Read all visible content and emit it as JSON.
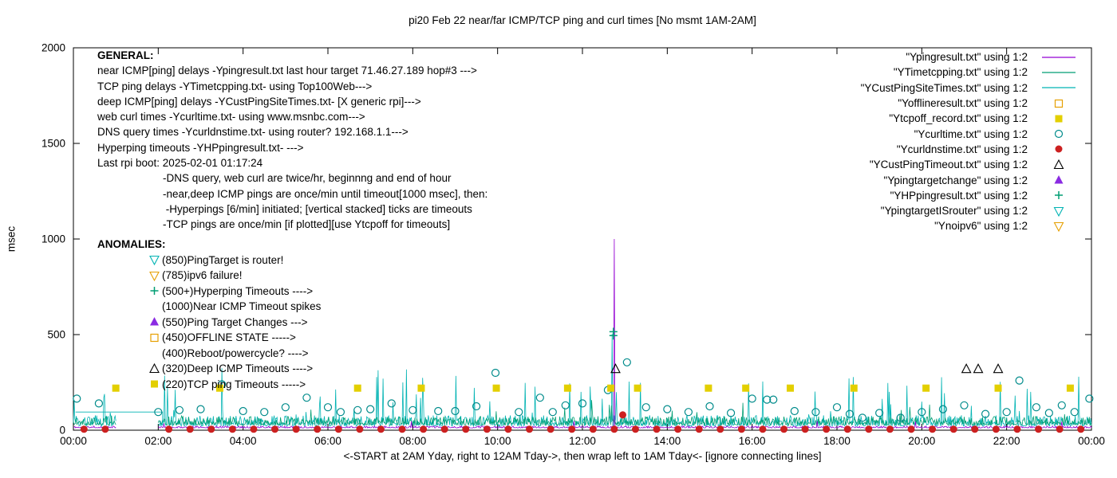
{
  "title": "pi20 Feb 22  near/far ICMP/TCP ping and curl times [No msmt 1AM-2AM]",
  "axes": {
    "ylabel": "msec",
    "xlabel": "<-START at 2AM Yday, right to 12AM Tday->, then wrap left to 1AM Tday<- [ignore connecting lines]",
    "y_ticks": [
      0,
      500,
      1000,
      1500,
      2000
    ],
    "x_tick_labels": [
      "00:00",
      "02:00",
      "04:00",
      "06:00",
      "08:00",
      "10:00",
      "12:00",
      "14:00",
      "16:00",
      "18:00",
      "20:00",
      "22:00",
      "00:00"
    ]
  },
  "general": {
    "heading": "GENERAL:",
    "lines": [
      "near ICMP[ping] delays -Ypingresult.txt last hour target 71.46.27.189 hop#3 --->",
      "TCP ping delays -YTimetcpping.txt- using Top100Web--->",
      "deep ICMP[ping] delays -YCustPingSiteTimes.txt- [X generic rpi]--->",
      "web curl times -Ycurltime.txt- using www.msnbc.com--->",
      "DNS query times -Ycurldnstime.txt- using router? 192.168.1.1--->",
      "Hyperping timeouts -YHPpingresult.txt- --->",
      "Last rpi boot: 2025-02-01 01:17:24"
    ],
    "indented_lines": [
      "-DNS query, web curl are twice/hr, beginnng and end of hour",
      "-near,deep ICMP pings are once/min until timeout[1000 msec], then:",
      " -Hyperpings [6/min] initiated; [vertical stacked] ticks are timeouts",
      "-TCP pings are once/min [if plotted][use Ytcpoff for timeouts]"
    ]
  },
  "anomalies": {
    "heading": "ANOMALIES:",
    "items": [
      {
        "marker": "open-triangle-down",
        "color": "#00b3b3",
        "label": "(850)PingTarget is router!"
      },
      {
        "marker": "open-triangle-down",
        "color": "#e69f00",
        "label": "(785)ipv6 failure!"
      },
      {
        "marker": "plus",
        "color": "#009e73",
        "label": "(500+)Hyperping Timeouts ---->"
      },
      {
        "marker": "none",
        "color": "",
        "label": "(1000)Near ICMP Timeout spikes"
      },
      {
        "marker": "filled-triangle-up",
        "color": "#8a2be2",
        "label": "(550)Ping Target Changes --->"
      },
      {
        "marker": "open-square",
        "color": "#e69f00",
        "label": "(450)OFFLINE STATE ----->"
      },
      {
        "marker": "none",
        "color": "",
        "label": "(400)Reboot/powercycle? ---->"
      },
      {
        "marker": "open-triangle-up",
        "color": "#000000",
        "label": "(320)Deep ICMP Timeouts ---->"
      },
      {
        "marker": "filled-square",
        "color": "#e3cf00",
        "label": "(220)TCP ping Timeouts ----->"
      }
    ]
  },
  "legend": [
    {
      "label": "\"Ypingresult.txt\" using 1:2",
      "marker": "line",
      "color": "#9400d3"
    },
    {
      "label": "\"YTimetcpping.txt\" using 1:2",
      "marker": "line",
      "color": "#009e73"
    },
    {
      "label": "\"YCustPingSiteTimes.txt\" using 1:2",
      "marker": "line",
      "color": "#00b3b3"
    },
    {
      "label": "\"Yofflineresult.txt\" using 1:2",
      "marker": "open-square",
      "color": "#e69f00"
    },
    {
      "label": "\"Ytcpoff_record.txt\" using 1:2",
      "marker": "filled-square",
      "color": "#e3cf00"
    },
    {
      "label": "\"Ycurltime.txt\" using 1:2",
      "marker": "open-circle",
      "color": "#008b8b"
    },
    {
      "label": "\"Ycurldnstime.txt\" using 1:2",
      "marker": "filled-circle",
      "color": "#cc2020"
    },
    {
      "label": "\"YCustPingTimeout.txt\" using 1:2",
      "marker": "open-triangle-up",
      "color": "#000000"
    },
    {
      "label": "\"Ypingtargetchange\" using 1:2",
      "marker": "filled-triangle-up",
      "color": "#8a2be2"
    },
    {
      "label": "\"YHPpingresult.txt\" using 1:2",
      "marker": "plus",
      "color": "#009e73"
    },
    {
      "label": "\"YpingtargetISrouter\" using 1:2",
      "marker": "open-triangle-down",
      "color": "#00b3b3"
    },
    {
      "label": "\"Ynoipv6\" using 1:2",
      "marker": "open-triangle-down",
      "color": "#e69f00"
    }
  ],
  "chart_data": {
    "type": "line+scatter",
    "x_unit": "hours",
    "x_range": [
      0,
      24
    ],
    "y_range": [
      0,
      2000
    ],
    "grid": false,
    "no_measurement_gap_hours": [
      1.0,
      2.0
    ],
    "line_series": [
      {
        "name": "YCustPingSiteTimes.txt",
        "color": "#00b3b3",
        "baseline_msec": 22,
        "jitter_msec": 28,
        "spike_probability": 0.05,
        "spike_max_msec": 260,
        "seed": 33,
        "explicit_spikes": [
          [
            12.7,
            505
          ]
        ]
      },
      {
        "name": "YTimetcpping.txt",
        "color": "#009e73",
        "baseline_msec": 28,
        "jitter_msec": 22,
        "spike_probability": 0.02,
        "spike_max_msec": 100,
        "seed": 22,
        "explicit_spikes": []
      },
      {
        "name": "Ypingresult.txt",
        "color": "#9400d3",
        "baseline_msec": 12,
        "jitter_msec": 5,
        "spike_probability": 0.002,
        "spike_max_msec": 40,
        "seed": 11,
        "explicit_spikes": [
          [
            12.75,
            1000
          ]
        ]
      }
    ],
    "scatter_series": [
      {
        "name": "Ycurltime.txt",
        "marker": "open-circle",
        "color": "#008b8b",
        "points": [
          [
            0.08,
            165
          ],
          [
            0.6,
            140
          ],
          [
            2.0,
            95
          ],
          [
            2.5,
            105
          ],
          [
            3.0,
            110
          ],
          [
            3.5,
            240
          ],
          [
            4.0,
            100
          ],
          [
            4.5,
            95
          ],
          [
            5.0,
            120
          ],
          [
            5.5,
            170
          ],
          [
            6.0,
            120
          ],
          [
            6.3,
            95
          ],
          [
            6.7,
            105
          ],
          [
            7.0,
            110
          ],
          [
            7.5,
            140
          ],
          [
            8.0,
            105
          ],
          [
            8.6,
            100
          ],
          [
            9.0,
            100
          ],
          [
            9.5,
            125
          ],
          [
            9.95,
            300
          ],
          [
            10.5,
            95
          ],
          [
            11.0,
            170
          ],
          [
            11.3,
            95
          ],
          [
            11.6,
            130
          ],
          [
            12.0,
            140
          ],
          [
            12.6,
            210
          ],
          [
            13.05,
            355
          ],
          [
            13.5,
            120
          ],
          [
            14.0,
            110
          ],
          [
            14.5,
            95
          ],
          [
            15.0,
            125
          ],
          [
            15.5,
            90
          ],
          [
            16.0,
            165
          ],
          [
            16.35,
            160
          ],
          [
            16.5,
            160
          ],
          [
            17.0,
            100
          ],
          [
            17.5,
            95
          ],
          [
            18.0,
            120
          ],
          [
            18.3,
            85
          ],
          [
            18.6,
            65
          ],
          [
            19.0,
            90
          ],
          [
            19.5,
            65
          ],
          [
            20.0,
            95
          ],
          [
            20.5,
            110
          ],
          [
            21.0,
            130
          ],
          [
            21.5,
            85
          ],
          [
            22.0,
            95
          ],
          [
            22.3,
            260
          ],
          [
            22.7,
            120
          ],
          [
            23.0,
            90
          ],
          [
            23.3,
            130
          ],
          [
            23.6,
            95
          ],
          [
            23.95,
            165
          ]
        ]
      },
      {
        "name": "Ycurldnstime.txt",
        "marker": "filled-circle",
        "color": "#cc2020",
        "points": [
          [
            0.25,
            5
          ],
          [
            0.75,
            5
          ],
          [
            2.25,
            5
          ],
          [
            2.75,
            5
          ],
          [
            3.25,
            5
          ],
          [
            3.75,
            5
          ],
          [
            4.25,
            5
          ],
          [
            4.75,
            5
          ],
          [
            5.25,
            5
          ],
          [
            5.75,
            5
          ],
          [
            6.25,
            5
          ],
          [
            6.75,
            5
          ],
          [
            7.25,
            5
          ],
          [
            7.75,
            5
          ],
          [
            8.25,
            5
          ],
          [
            8.75,
            5
          ],
          [
            9.25,
            5
          ],
          [
            9.75,
            5
          ],
          [
            10.25,
            5
          ],
          [
            10.75,
            5
          ],
          [
            11.25,
            5
          ],
          [
            11.75,
            5
          ],
          [
            12.25,
            5
          ],
          [
            12.75,
            5
          ],
          [
            12.95,
            80
          ],
          [
            13.25,
            5
          ],
          [
            13.75,
            5
          ],
          [
            14.25,
            5
          ],
          [
            14.75,
            5
          ],
          [
            15.25,
            5
          ],
          [
            15.75,
            5
          ],
          [
            16.25,
            5
          ],
          [
            16.75,
            5
          ],
          [
            17.25,
            5
          ],
          [
            17.75,
            5
          ],
          [
            18.25,
            5
          ],
          [
            18.75,
            5
          ],
          [
            19.25,
            5
          ],
          [
            19.75,
            5
          ],
          [
            20.25,
            5
          ],
          [
            20.75,
            5
          ],
          [
            21.25,
            5
          ],
          [
            21.75,
            5
          ],
          [
            22.25,
            5
          ],
          [
            22.75,
            5
          ],
          [
            23.25,
            5
          ],
          [
            23.75,
            5
          ]
        ]
      },
      {
        "name": "Ytcpoff_record.txt",
        "marker": "filled-square",
        "color": "#e3cf00",
        "points": [
          [
            1.0,
            220
          ],
          [
            3.45,
            220
          ],
          [
            6.7,
            220
          ],
          [
            8.2,
            220
          ],
          [
            9.97,
            220
          ],
          [
            11.65,
            220
          ],
          [
            12.67,
            220
          ],
          [
            13.3,
            220
          ],
          [
            14.97,
            220
          ],
          [
            15.85,
            220
          ],
          [
            16.9,
            220
          ],
          [
            18.4,
            220
          ],
          [
            20.1,
            220
          ],
          [
            21.8,
            220
          ],
          [
            23.5,
            220
          ]
        ]
      },
      {
        "name": "YCustPingTimeout.txt",
        "marker": "open-triangle-up",
        "color": "#000000",
        "points": [
          [
            12.78,
            320
          ],
          [
            21.05,
            320
          ],
          [
            21.33,
            320
          ],
          [
            21.8,
            320
          ]
        ]
      },
      {
        "name": "YHPpingresult.txt",
        "marker": "plus",
        "color": "#009e73",
        "points": [
          [
            12.73,
            495
          ],
          [
            12.73,
            515
          ]
        ]
      }
    ],
    "artifact_segments": [
      {
        "color": "#00b3b3",
        "points": [
          [
            0.05,
            95
          ],
          [
            2.1,
            95
          ],
          [
            2.1,
            30
          ]
        ]
      }
    ]
  }
}
